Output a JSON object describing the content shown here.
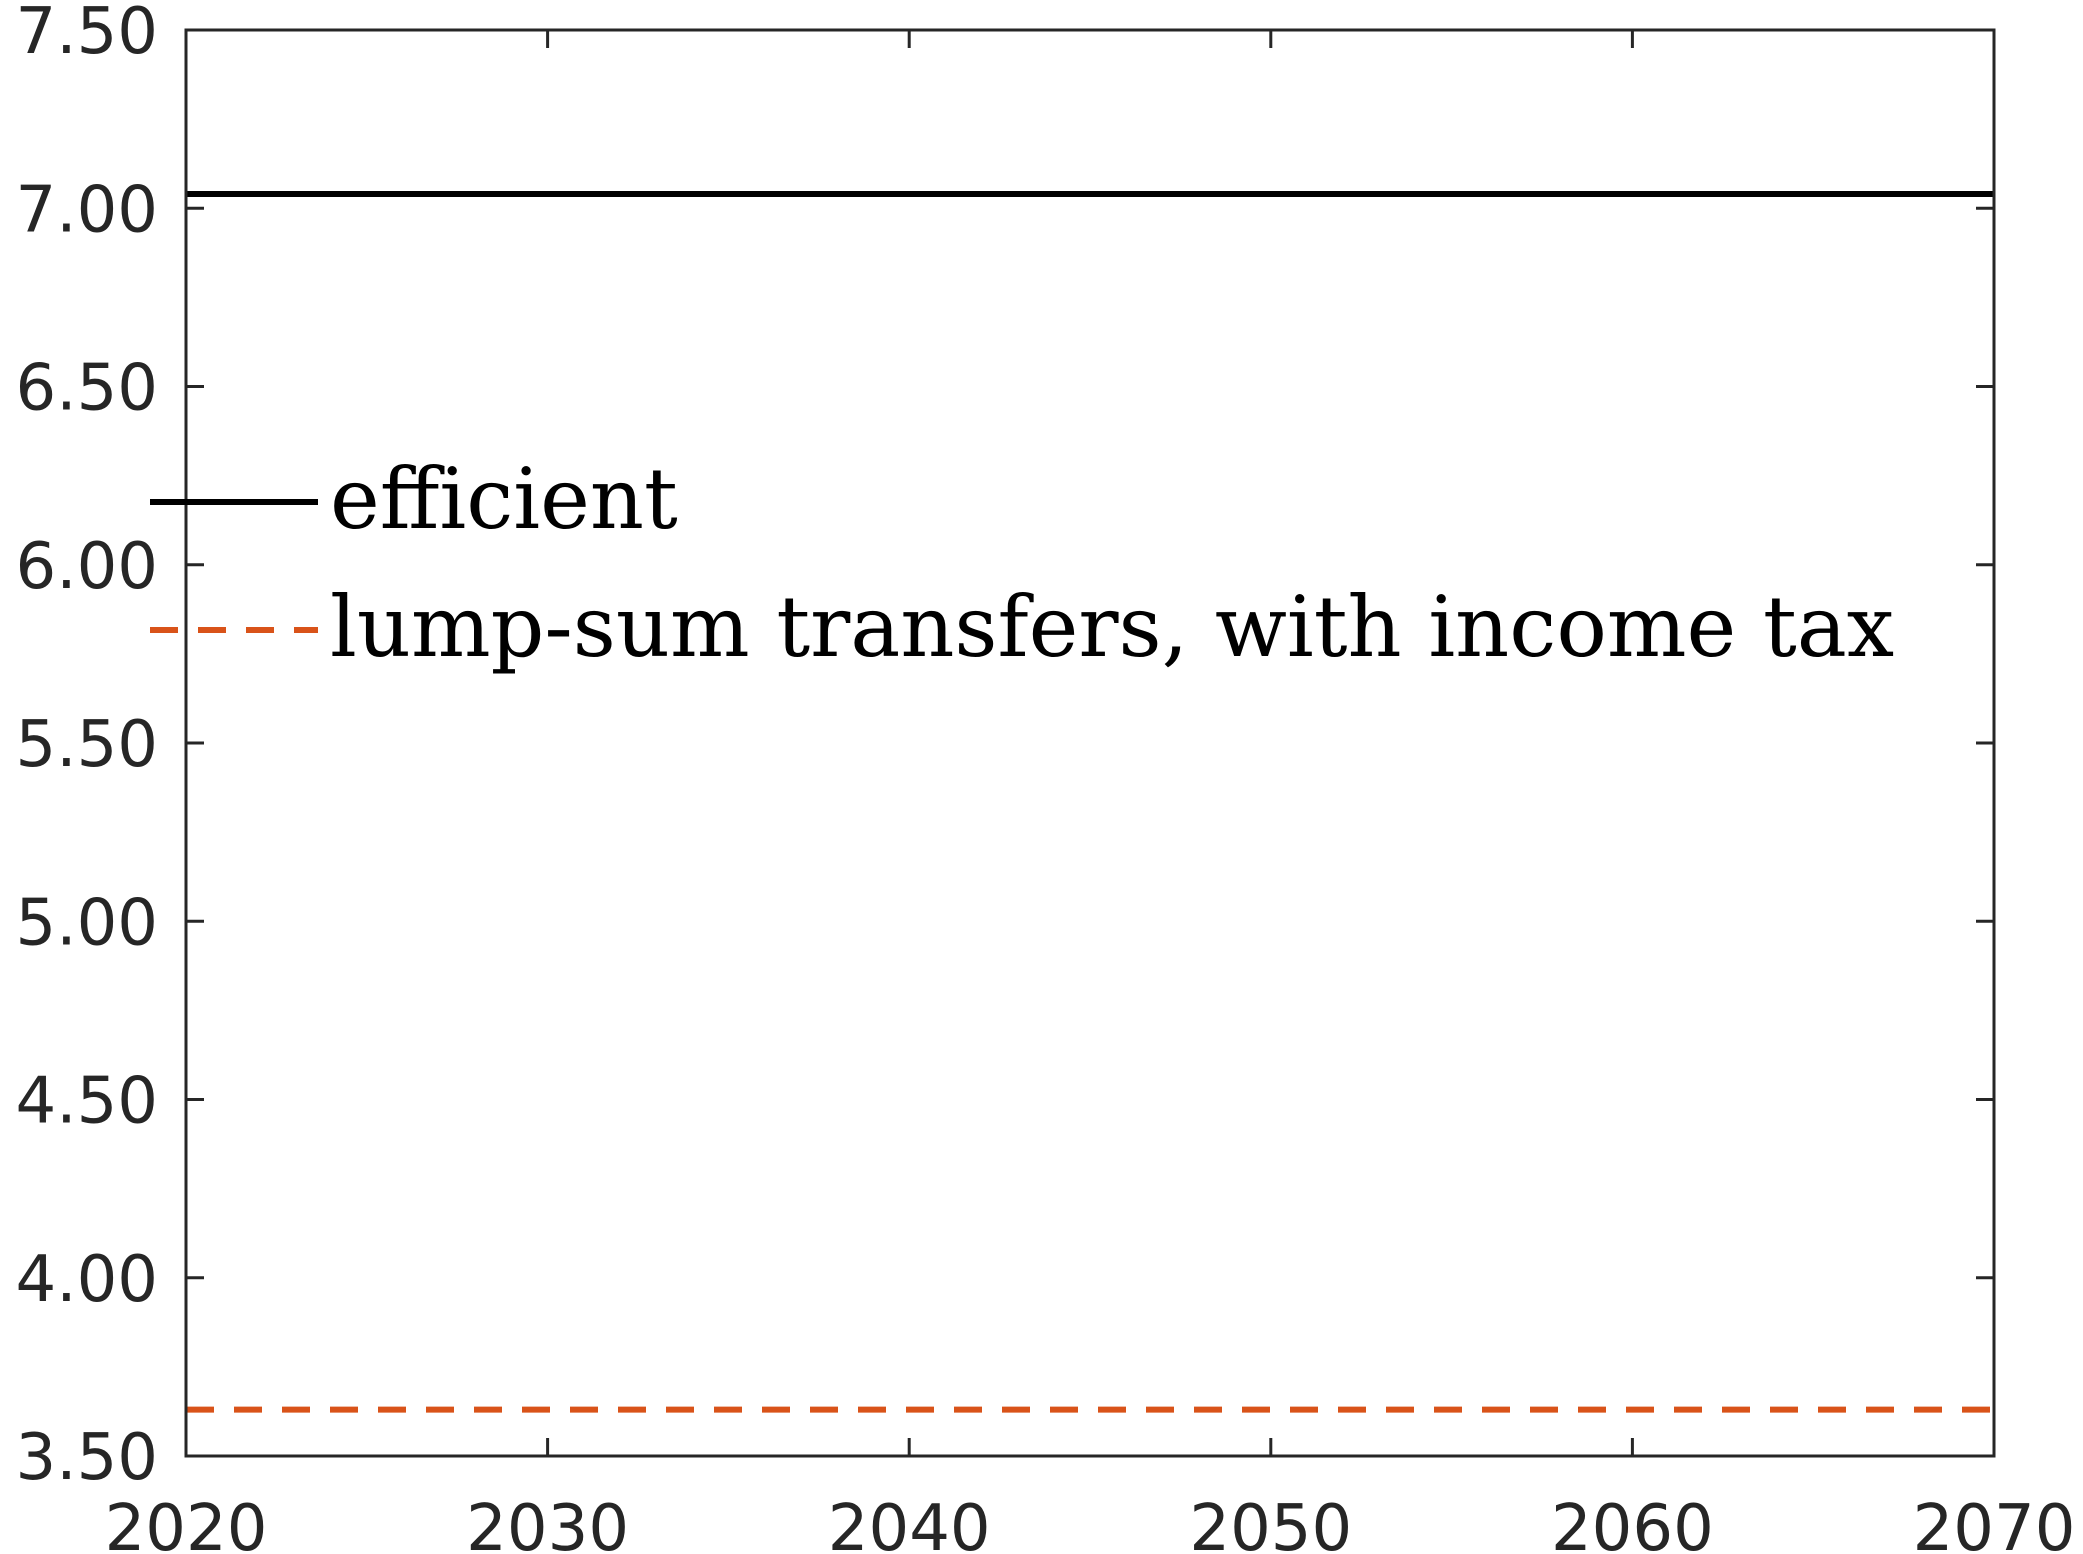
{
  "chart_data": {
    "type": "line",
    "title": "",
    "xlabel": "",
    "ylabel": "",
    "xlim": [
      2020,
      2070
    ],
    "ylim": [
      3.5,
      7.5
    ],
    "x_ticks": [
      "2020",
      "2030",
      "2040",
      "2050",
      "2060",
      "2070"
    ],
    "y_ticks": [
      "3.50",
      "4.00",
      "4.50",
      "5.00",
      "5.50",
      "6.00",
      "6.50",
      "7.00",
      "7.50"
    ],
    "grid": false,
    "legend_position": "left",
    "series": [
      {
        "name": "efficient",
        "style": "solid",
        "color": "#000000",
        "x": [
          2020,
          2070
        ],
        "y": [
          7.04,
          7.04
        ]
      },
      {
        "name": "lump-sum transfers, with income tax",
        "style": "dashed",
        "color": "#D95319",
        "x": [
          2020,
          2070
        ],
        "y": [
          3.63,
          3.63
        ]
      }
    ]
  }
}
